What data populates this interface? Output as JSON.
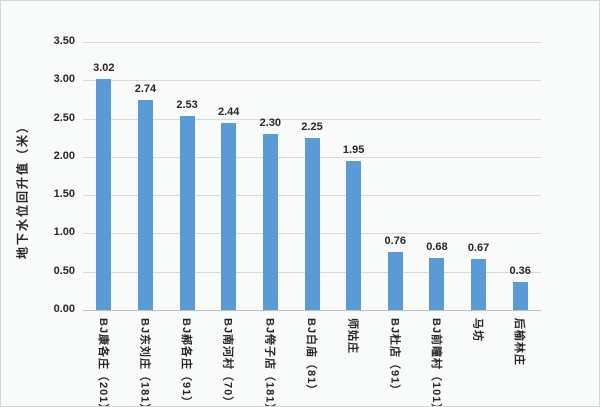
{
  "chart_data": {
    "type": "bar",
    "title": "",
    "xlabel": "",
    "ylabel": "地下水位回升值（米）",
    "categories": [
      "BJ康各庄（201）",
      "BJ东刘庄（181）",
      "BJ郝各庄（91）",
      "BJ南河村（70）",
      "BJ侉子店（181）",
      "BJ白庙（81）",
      "师姑庄",
      "BJ杜店（91）",
      "BJ前瞳村（101）",
      "马坊",
      "后榆林庄"
    ],
    "values": [
      3.02,
      2.74,
      2.53,
      2.44,
      2.3,
      2.25,
      1.95,
      0.76,
      0.68,
      0.67,
      0.36
    ],
    "value_labels": [
      "3.02",
      "2.74",
      "2.53",
      "2.44",
      "2.30",
      "2.25",
      "1.95",
      "0.76",
      "0.68",
      "0.67",
      "0.36"
    ],
    "ylim": [
      0,
      3.5
    ],
    "ytick_step": 0.5,
    "yticks": [
      "0.00",
      "0.50",
      "1.00",
      "1.50",
      "2.00",
      "2.50",
      "3.00",
      "3.50"
    ],
    "grid": true,
    "legend": "none",
    "bar_color": "#5b9bd5",
    "text_color": "#262626",
    "gridline_color": "#d9d9d9",
    "axis_line_color": "#bfbfbf",
    "background_color": "#f9fafa"
  }
}
